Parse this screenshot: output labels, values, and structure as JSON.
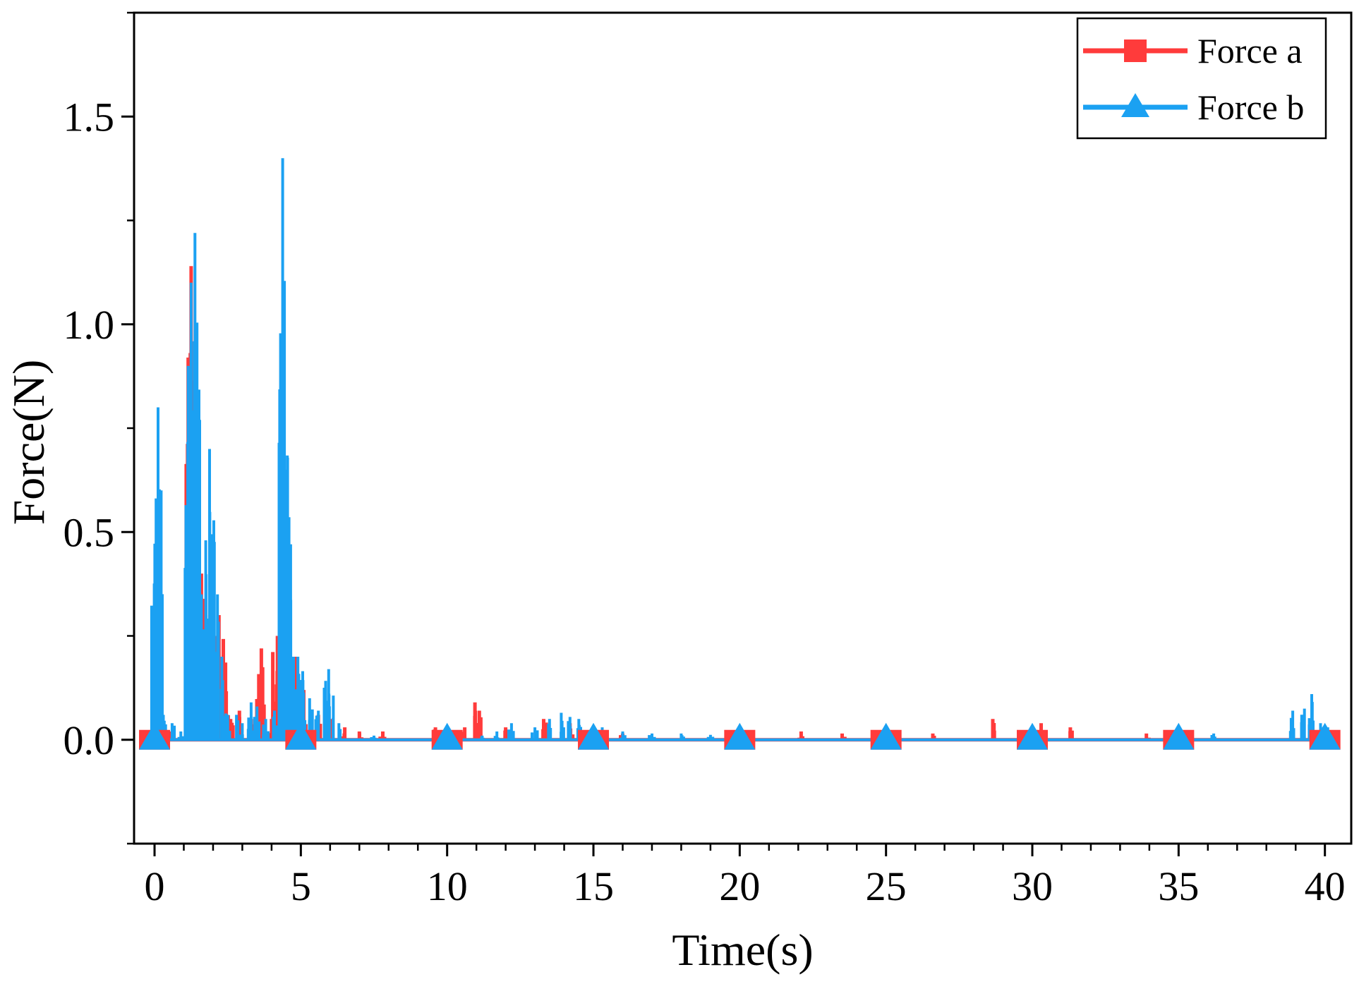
{
  "chart_data": {
    "type": "line",
    "title": "",
    "xlabel": "Time(s)",
    "ylabel": "Force(N)",
    "xlim": [
      -0.7,
      40.9
    ],
    "ylim": [
      -0.25,
      1.75
    ],
    "x_ticks": [
      0,
      5,
      10,
      15,
      20,
      25,
      30,
      35,
      40
    ],
    "x_tick_labels": [
      "0",
      "5",
      "10",
      "15",
      "20",
      "25",
      "30",
      "35",
      "40"
    ],
    "y_ticks": [
      0.0,
      0.5,
      1.0,
      1.5
    ],
    "y_tick_labels": [
      "0.0",
      "0.5",
      "1.0",
      "1.5"
    ],
    "marker_x": [
      0,
      5,
      10,
      15,
      20,
      25,
      30,
      35,
      40
    ],
    "legend_position": "top-right",
    "grid": false,
    "series": [
      {
        "name": "Force a",
        "color": "#ff3b3b",
        "marker": "square",
        "peaks": [
          [
            0.0,
            0.01
          ],
          [
            0.1,
            0.35
          ],
          [
            0.2,
            0.05
          ],
          [
            0.5,
            0.02
          ],
          [
            1.15,
            0.92
          ],
          [
            1.25,
            1.14
          ],
          [
            1.35,
            0.6
          ],
          [
            1.5,
            0.2
          ],
          [
            1.6,
            0.4
          ],
          [
            1.75,
            0.3
          ],
          [
            1.9,
            0.3
          ],
          [
            2.05,
            0.25
          ],
          [
            2.2,
            0.3
          ],
          [
            2.35,
            0.22
          ],
          [
            2.6,
            0.05
          ],
          [
            2.9,
            0.07
          ],
          [
            3.3,
            0.05
          ],
          [
            3.65,
            0.22
          ],
          [
            4.0,
            0.05
          ],
          [
            4.2,
            0.25
          ],
          [
            4.45,
            0.6
          ],
          [
            4.6,
            0.18
          ],
          [
            4.85,
            0.2
          ],
          [
            5.1,
            0.12
          ],
          [
            5.6,
            0.06
          ],
          [
            6.0,
            0.05
          ],
          [
            6.5,
            0.03
          ],
          [
            7.0,
            0.02
          ],
          [
            7.8,
            0.02
          ],
          [
            9.6,
            0.03
          ],
          [
            10.6,
            0.03
          ],
          [
            10.95,
            0.09
          ],
          [
            11.1,
            0.07
          ],
          [
            12.0,
            0.03
          ],
          [
            13.3,
            0.05
          ],
          [
            14.2,
            0.04
          ],
          [
            15.0,
            0.03
          ],
          [
            16.0,
            0.015
          ],
          [
            22.1,
            0.02
          ],
          [
            23.5,
            0.015
          ],
          [
            24.6,
            0.02
          ],
          [
            26.6,
            0.015
          ],
          [
            28.65,
            0.05
          ],
          [
            30.3,
            0.04
          ],
          [
            31.3,
            0.03
          ],
          [
            33.9,
            0.015
          ],
          [
            40.0,
            0.03
          ]
        ]
      },
      {
        "name": "Force b",
        "color": "#1ba1f2",
        "marker": "triangle",
        "peaks": [
          [
            0.0,
            0.02
          ],
          [
            0.05,
            0.45
          ],
          [
            0.12,
            0.8
          ],
          [
            0.2,
            0.14
          ],
          [
            0.3,
            0.06
          ],
          [
            0.6,
            0.04
          ],
          [
            0.9,
            0.02
          ],
          [
            1.15,
            0.9
          ],
          [
            1.25,
            1.1
          ],
          [
            1.38,
            1.22
          ],
          [
            1.5,
            0.3
          ],
          [
            1.6,
            0.35
          ],
          [
            1.75,
            0.48
          ],
          [
            1.88,
            0.7
          ],
          [
            2.0,
            0.4
          ],
          [
            2.15,
            0.35
          ],
          [
            2.3,
            0.2
          ],
          [
            2.5,
            0.06
          ],
          [
            2.8,
            0.06
          ],
          [
            3.0,
            0.04
          ],
          [
            3.3,
            0.09
          ],
          [
            3.5,
            0.08
          ],
          [
            3.8,
            0.05
          ],
          [
            4.1,
            0.07
          ],
          [
            4.38,
            1.4
          ],
          [
            4.5,
            0.65
          ],
          [
            4.6,
            0.42
          ],
          [
            4.75,
            0.2
          ],
          [
            4.9,
            0.2
          ],
          [
            5.05,
            0.14
          ],
          [
            5.3,
            0.1
          ],
          [
            5.6,
            0.07
          ],
          [
            5.95,
            0.17
          ],
          [
            6.3,
            0.04
          ],
          [
            7.5,
            0.01
          ],
          [
            11.2,
            0.01
          ],
          [
            11.7,
            0.02
          ],
          [
            12.2,
            0.04
          ],
          [
            13.0,
            0.03
          ],
          [
            13.5,
            0.05
          ],
          [
            13.9,
            0.065
          ],
          [
            14.2,
            0.055
          ],
          [
            14.5,
            0.05
          ],
          [
            15.3,
            0.03
          ],
          [
            16.0,
            0.02
          ],
          [
            17.0,
            0.015
          ],
          [
            18.0,
            0.015
          ],
          [
            19.0,
            0.012
          ],
          [
            36.2,
            0.015
          ],
          [
            38.9,
            0.07
          ],
          [
            39.3,
            0.075
          ],
          [
            39.55,
            0.11
          ],
          [
            39.85,
            0.04
          ],
          [
            40.1,
            0.03
          ]
        ]
      }
    ]
  }
}
